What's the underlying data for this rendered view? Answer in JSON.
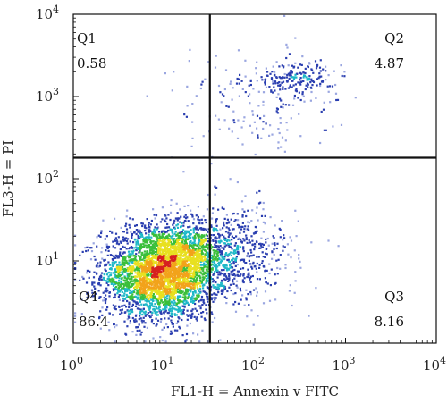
{
  "chart_data": {
    "type": "scatter",
    "x_scale": "log",
    "y_scale": "log",
    "xlim": [
      1,
      10000
    ],
    "ylim": [
      1,
      10000
    ],
    "xlabel": "FL1-H = Annexin v FITC",
    "ylabel": "FL3-H = PI",
    "x_ticks": [
      {
        "value": 1,
        "base": "10",
        "exp": "0"
      },
      {
        "value": 10,
        "base": "10",
        "exp": "1"
      },
      {
        "value": 100,
        "base": "10",
        "exp": "2"
      },
      {
        "value": 1000,
        "base": "10",
        "exp": "3"
      },
      {
        "value": 10000,
        "base": "10",
        "exp": "4"
      }
    ],
    "y_ticks": [
      {
        "value": 1,
        "base": "10",
        "exp": "0"
      },
      {
        "value": 10,
        "base": "10",
        "exp": "1"
      },
      {
        "value": 100,
        "base": "10",
        "exp": "2"
      },
      {
        "value": 1000,
        "base": "10",
        "exp": "3"
      },
      {
        "value": 10000,
        "base": "10",
        "exp": "4"
      }
    ],
    "gates": {
      "x": 32,
      "y": 180
    },
    "quadrants": [
      {
        "name": "Q1",
        "percent": "0.58",
        "position": "top-left"
      },
      {
        "name": "Q2",
        "percent": "4.87",
        "position": "top-right"
      },
      {
        "name": "Q3",
        "percent": "8.16",
        "position": "bottom-right"
      },
      {
        "name": "Q4",
        "percent": "86.4",
        "position": "bottom-left"
      }
    ],
    "clusters": [
      {
        "cx": 9,
        "cy": 7,
        "sx": 0.32,
        "sy": 0.28,
        "n": 3200
      },
      {
        "cx": 20,
        "cy": 12,
        "sx": 0.25,
        "sy": 0.22,
        "n": 600
      },
      {
        "cx": 60,
        "cy": 12,
        "sx": 0.35,
        "sy": 0.3,
        "n": 500
      },
      {
        "cx": 300,
        "cy": 1700,
        "sx": 0.22,
        "sy": 0.1,
        "n": 180
      },
      {
        "cx": 100,
        "cy": 800,
        "sx": 0.45,
        "sy": 0.35,
        "n": 170
      }
    ],
    "grid": false,
    "colors": {
      "dense": "#d62020",
      "high": "#f2a31b",
      "mid_high": "#e8e020",
      "mid": "#3bbf3b",
      "low_mid": "#1fb8c8",
      "low": "#2b3fb0",
      "sparse": "#9aa6e0",
      "gate_line": "#111111"
    }
  }
}
